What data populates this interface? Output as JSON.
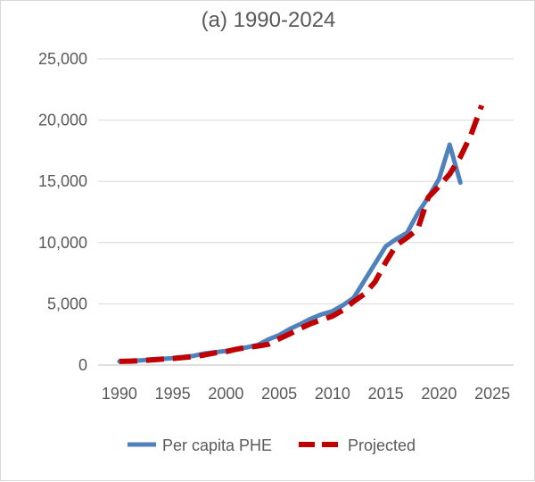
{
  "chart_data": {
    "type": "line",
    "title": "(a) 1990-2024",
    "xlabel": "",
    "ylabel": "",
    "xlim": [
      1988,
      2027
    ],
    "ylim": [
      0,
      25000
    ],
    "x_ticks": [
      1990,
      1995,
      2000,
      2005,
      2010,
      2015,
      2020,
      2025
    ],
    "y_ticks": [
      0,
      5000,
      10000,
      15000,
      20000,
      25000
    ],
    "y_tick_labels": [
      "0",
      "5,000",
      "10,000",
      "15,000",
      "20,000",
      "25,000"
    ],
    "grid": true,
    "legend": "bottom",
    "series": [
      {
        "name": "Per capita PHE",
        "color": "#4f81bd",
        "style": "solid",
        "x": [
          1990,
          1991,
          1992,
          1993,
          1994,
          1995,
          1996,
          1997,
          1998,
          1999,
          2000,
          2001,
          2002,
          2003,
          2004,
          2005,
          2006,
          2007,
          2008,
          2009,
          2010,
          2011,
          2012,
          2013,
          2014,
          2015,
          2016,
          2017,
          2018,
          2019,
          2020,
          2021,
          2022
        ],
        "y": [
          300,
          320,
          380,
          450,
          500,
          560,
          650,
          760,
          950,
          1050,
          1150,
          1300,
          1450,
          1650,
          2100,
          2450,
          2950,
          3350,
          3800,
          4150,
          4400,
          4900,
          5500,
          6900,
          8300,
          9700,
          10300,
          10800,
          12400,
          13700,
          15200,
          18000,
          14900
        ]
      },
      {
        "name": "Projected",
        "color": "#c00000",
        "style": "dashed",
        "x": [
          1990,
          1991,
          1992,
          1993,
          1994,
          1995,
          1996,
          1997,
          1998,
          1999,
          2000,
          2001,
          2002,
          2003,
          2004,
          2005,
          2006,
          2007,
          2008,
          2009,
          2010,
          2011,
          2012,
          2013,
          2014,
          2015,
          2016,
          2017,
          2018,
          2019,
          2020,
          2021,
          2022,
          2023,
          2024
        ],
        "y": [
          300,
          320,
          360,
          420,
          480,
          540,
          620,
          700,
          830,
          1000,
          1100,
          1300,
          1450,
          1550,
          1700,
          2150,
          2550,
          3000,
          3400,
          3700,
          4000,
          4500,
          5200,
          5800,
          6800,
          8400,
          9800,
          10400,
          11100,
          13700,
          14600,
          15600,
          17000,
          18800,
          21200
        ]
      }
    ]
  }
}
